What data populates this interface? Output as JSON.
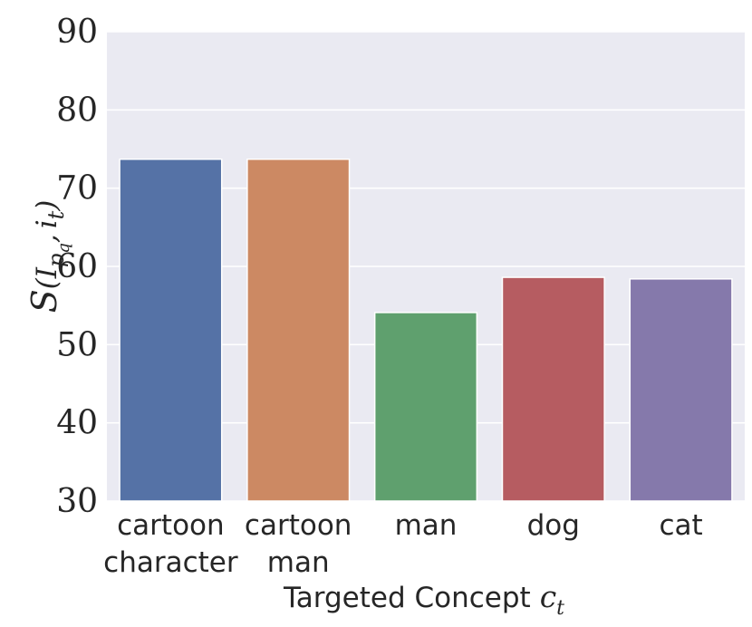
{
  "chart_data": {
    "type": "bar",
    "categories": [
      [
        "cartoon",
        "character"
      ],
      [
        "cartoon",
        "man"
      ],
      [
        "man"
      ],
      [
        "dog"
      ],
      [
        "cat"
      ]
    ],
    "values": [
      73.7,
      73.7,
      54.1,
      58.6,
      58.4
    ],
    "colors": [
      "#5572a6",
      "#cc8963",
      "#5fa06e",
      "#b65c61",
      "#8579ab"
    ],
    "xlabel": "Targeted Concept",
    "xlabel_symbol": "c",
    "xlabel_subscript": "t",
    "ylabel": "S(I_{p_q}, i_t)",
    "ylim": [
      30,
      90
    ],
    "yticks": [
      "30",
      "40",
      "50",
      "60",
      "70",
      "80",
      "90"
    ],
    "grid": true,
    "style": {
      "background": "#eaeaf2",
      "grid_color": "#ffffff"
    }
  }
}
